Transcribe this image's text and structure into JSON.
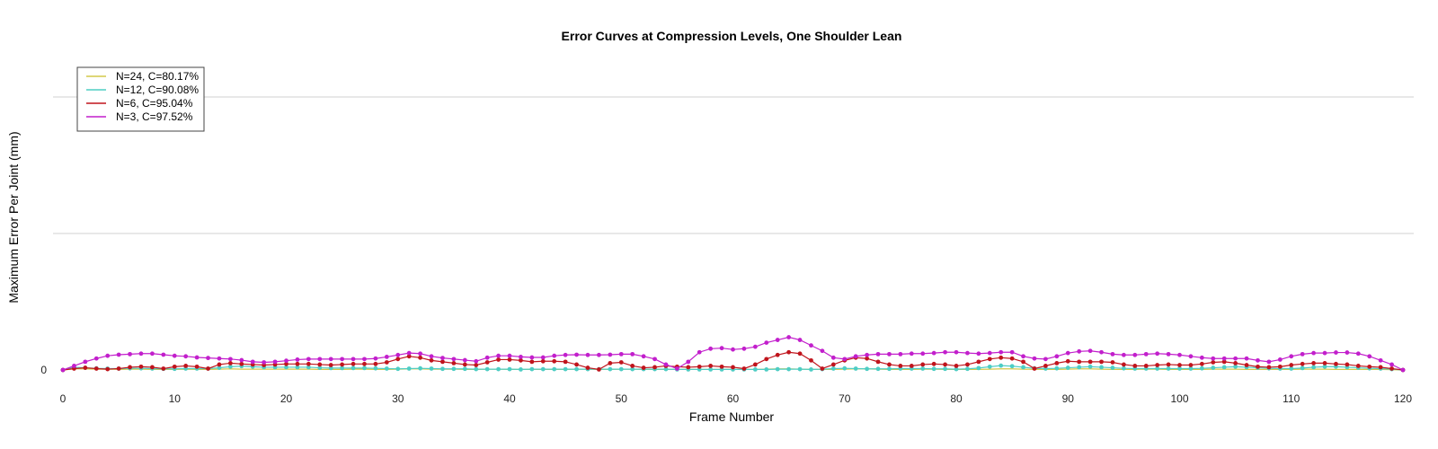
{
  "chart_data": {
    "type": "line",
    "title": "Error Curves at Compression Levels, One Shoulder Lean",
    "xlabel": "Frame Number",
    "ylabel": "Maximum Error Per Joint (mm)",
    "xlim": [
      0,
      120
    ],
    "ylim": [
      0,
      10
    ],
    "x_ticks": [
      0,
      10,
      20,
      30,
      40,
      50,
      60,
      70,
      80,
      90,
      100,
      110,
      120
    ],
    "y_ticks": [
      0
    ],
    "grid_y": [
      5,
      10
    ],
    "legend_position": "top-left",
    "series": [
      {
        "name": "N=24, C=80.17%",
        "color": "#d4c84a",
        "markers": false,
        "values": [
          0,
          0.04,
          0.04,
          0.03,
          0.03,
          0.02,
          0.03,
          0.03,
          0.02,
          0.02,
          0.02,
          0.03,
          0.02,
          0.02,
          0.03,
          0.04,
          0.03,
          0.03,
          0.03,
          0.03,
          0.03,
          0.03,
          0.03,
          0.02,
          0.02,
          0.02,
          0.03,
          0.03,
          0.02,
          0.02,
          0.03,
          0.04,
          0.04,
          0.03,
          0.03,
          0.03,
          0.02,
          0.02,
          0.03,
          0.03,
          0.02,
          0.02,
          0.02,
          0.02,
          0.02,
          0.02,
          0.03,
          0.03,
          0.02,
          0.02,
          0.03,
          0.03,
          0.02,
          0.02,
          0.02,
          0.02,
          0.02,
          0.02,
          0.02,
          0.02,
          0.02,
          0.02,
          0.02,
          0.03,
          0.04,
          0.04,
          0.03,
          0.02,
          0.02,
          0.02,
          0.03,
          0.04,
          0.04,
          0.03,
          0.02,
          0.02,
          0.02,
          0.03,
          0.03,
          0.02,
          0.02,
          0.02,
          0.02,
          0.03,
          0.04,
          0.04,
          0.03,
          0.02,
          0.02,
          0.02,
          0.03,
          0.04,
          0.04,
          0.03,
          0.02,
          0.02,
          0.02,
          0.03,
          0.03,
          0.02,
          0.02,
          0.02,
          0.02,
          0.03,
          0.03,
          0.03,
          0.02,
          0.02,
          0.02,
          0.02,
          0.02,
          0.03,
          0.03,
          0.03,
          0.02,
          0.02,
          0.02,
          0.02,
          0.02,
          0.01,
          0
        ]
      },
      {
        "name": "N=12, C=90.08%",
        "color": "#4ecdc4",
        "markers": true,
        "values": [
          0,
          0.1,
          0.08,
          0.06,
          0.05,
          0.05,
          0.06,
          0.06,
          0.05,
          0.04,
          0.04,
          0.05,
          0.05,
          0.05,
          0.08,
          0.12,
          0.14,
          0.12,
          0.1,
          0.1,
          0.1,
          0.1,
          0.1,
          0.08,
          0.07,
          0.07,
          0.07,
          0.07,
          0.06,
          0.05,
          0.04,
          0.05,
          0.06,
          0.05,
          0.04,
          0.04,
          0.04,
          0.03,
          0.03,
          0.03,
          0.03,
          0.02,
          0.03,
          0.03,
          0.03,
          0.03,
          0.03,
          0.03,
          0.03,
          0.03,
          0.03,
          0.03,
          0.03,
          0.03,
          0.03,
          0.02,
          0.02,
          0.02,
          0.02,
          0.02,
          0.02,
          0.02,
          0.02,
          0.02,
          0.03,
          0.03,
          0.03,
          0.02,
          0.03,
          0.05,
          0.06,
          0.05,
          0.04,
          0.04,
          0.04,
          0.05,
          0.05,
          0.05,
          0.04,
          0.04,
          0.03,
          0.04,
          0.07,
          0.12,
          0.16,
          0.14,
          0.1,
          0.06,
          0.05,
          0.06,
          0.08,
          0.1,
          0.12,
          0.1,
          0.08,
          0.06,
          0.05,
          0.05,
          0.05,
          0.05,
          0.05,
          0.05,
          0.06,
          0.08,
          0.1,
          0.12,
          0.1,
          0.08,
          0.06,
          0.05,
          0.05,
          0.07,
          0.1,
          0.12,
          0.12,
          0.1,
          0.08,
          0.06,
          0.05,
          0.03,
          0
        ]
      },
      {
        "name": "N=6, C=95.04%",
        "color": "#c0141c",
        "markers": true,
        "values": [
          0,
          0.05,
          0.08,
          0.05,
          0.03,
          0.05,
          0.1,
          0.12,
          0.1,
          0.05,
          0.12,
          0.15,
          0.12,
          0.05,
          0.2,
          0.25,
          0.22,
          0.2,
          0.18,
          0.2,
          0.22,
          0.22,
          0.22,
          0.2,
          0.18,
          0.2,
          0.22,
          0.22,
          0.22,
          0.28,
          0.4,
          0.5,
          0.45,
          0.35,
          0.3,
          0.25,
          0.2,
          0.18,
          0.28,
          0.38,
          0.38,
          0.35,
          0.3,
          0.32,
          0.32,
          0.3,
          0.2,
          0.08,
          0.02,
          0.25,
          0.28,
          0.15,
          0.08,
          0.1,
          0.15,
          0.12,
          0.1,
          0.12,
          0.15,
          0.12,
          0.1,
          0.05,
          0.2,
          0.4,
          0.55,
          0.65,
          0.6,
          0.35,
          0.05,
          0.2,
          0.35,
          0.45,
          0.42,
          0.3,
          0.2,
          0.15,
          0.15,
          0.2,
          0.22,
          0.2,
          0.15,
          0.2,
          0.3,
          0.4,
          0.45,
          0.42,
          0.3,
          0.05,
          0.15,
          0.25,
          0.32,
          0.3,
          0.3,
          0.3,
          0.28,
          0.2,
          0.15,
          0.15,
          0.18,
          0.2,
          0.18,
          0.18,
          0.22,
          0.28,
          0.3,
          0.25,
          0.18,
          0.12,
          0.1,
          0.12,
          0.18,
          0.22,
          0.25,
          0.25,
          0.22,
          0.2,
          0.15,
          0.12,
          0.1,
          0.05,
          0
        ]
      },
      {
        "name": "N=3, C=97.52%",
        "color": "#c21fcc",
        "markers": true,
        "values": [
          0,
          0.15,
          0.3,
          0.42,
          0.52,
          0.56,
          0.58,
          0.6,
          0.6,
          0.56,
          0.52,
          0.5,
          0.46,
          0.44,
          0.42,
          0.4,
          0.36,
          0.3,
          0.28,
          0.3,
          0.34,
          0.38,
          0.4,
          0.4,
          0.4,
          0.4,
          0.4,
          0.4,
          0.42,
          0.48,
          0.55,
          0.62,
          0.6,
          0.5,
          0.44,
          0.4,
          0.36,
          0.32,
          0.45,
          0.52,
          0.52,
          0.48,
          0.46,
          0.46,
          0.52,
          0.55,
          0.56,
          0.55,
          0.55,
          0.56,
          0.58,
          0.58,
          0.5,
          0.4,
          0.2,
          0.05,
          0.3,
          0.65,
          0.78,
          0.8,
          0.75,
          0.78,
          0.85,
          1,
          1.1,
          1.2,
          1.1,
          0.9,
          0.7,
          0.45,
          0.4,
          0.5,
          0.55,
          0.58,
          0.58,
          0.58,
          0.6,
          0.6,
          0.62,
          0.65,
          0.65,
          0.62,
          0.6,
          0.62,
          0.65,
          0.65,
          0.5,
          0.42,
          0.4,
          0.5,
          0.62,
          0.68,
          0.7,
          0.65,
          0.58,
          0.55,
          0.55,
          0.58,
          0.6,
          0.58,
          0.55,
          0.5,
          0.45,
          0.42,
          0.42,
          0.42,
          0.42,
          0.35,
          0.3,
          0.38,
          0.5,
          0.58,
          0.62,
          0.62,
          0.64,
          0.64,
          0.6,
          0.5,
          0.35,
          0.2,
          0
        ]
      }
    ]
  }
}
